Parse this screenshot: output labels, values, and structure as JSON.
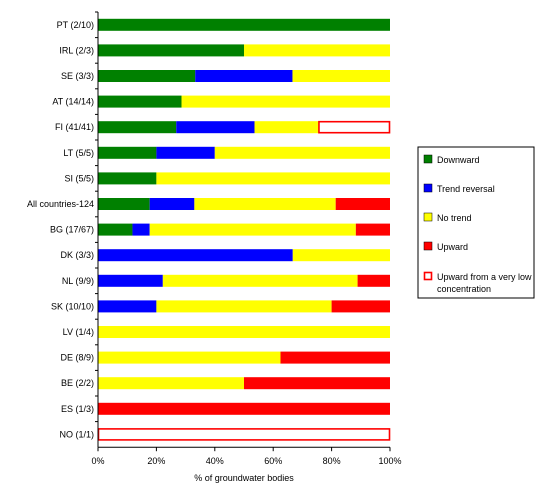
{
  "chart_data": {
    "type": "bar",
    "orientation": "horizontal",
    "stacked": true,
    "normalized": true,
    "title": "",
    "xlabel": "% of groundwater bodies",
    "ylabel": "",
    "xlim": [
      0,
      100
    ],
    "x_ticks": [
      "0%",
      "20%",
      "40%",
      "60%",
      "80%",
      "100%"
    ],
    "grid": false,
    "legend_position": "right",
    "categories": [
      "PT (2/10)",
      "IRL (2/3)",
      "SE (3/3)",
      "AT (14/14)",
      "FI (41/41)",
      "LT (5/5)",
      "SI (5/5)",
      "All countries-124",
      "BG (17/67)",
      "DK (3/3)",
      "NL (9/9)",
      "SK (10/10)",
      "LV (1/4)",
      "DE (8/9)",
      "BE (2/2)",
      "ES (1/3)",
      "NO (1/1)"
    ],
    "series": [
      {
        "name": "Downward",
        "color": "#008000",
        "style": "solid",
        "values": [
          100,
          50,
          33.3,
          28.6,
          26.8,
          20,
          20,
          17.7,
          11.8,
          0,
          0,
          0,
          0,
          0,
          0,
          0,
          0
        ]
      },
      {
        "name": "Trend reversal",
        "color": "#0000ff",
        "style": "solid",
        "values": [
          0,
          0,
          33.3,
          0,
          26.8,
          20,
          0,
          15.3,
          5.9,
          66.7,
          22.2,
          20,
          0,
          0,
          0,
          0,
          0
        ]
      },
      {
        "name": "No trend",
        "color": "#ffff00",
        "style": "solid",
        "values": [
          0,
          50,
          33.4,
          71.4,
          21.9,
          60,
          80,
          48.4,
          70.6,
          33.3,
          66.7,
          60,
          100,
          62.5,
          50,
          0,
          0
        ]
      },
      {
        "name": "Upward",
        "color": "#ff0000",
        "style": "solid",
        "values": [
          0,
          0,
          0,
          0,
          0,
          0,
          0,
          18.6,
          11.7,
          0,
          11.1,
          20,
          0,
          37.5,
          50,
          100,
          0
        ]
      },
      {
        "name": "Upward from a very low concentration",
        "color": "#ff0000",
        "style": "outline",
        "values": [
          0,
          0,
          0,
          0,
          24.5,
          0,
          0,
          0,
          0,
          0,
          0,
          0,
          0,
          0,
          0,
          0,
          100
        ]
      }
    ],
    "legend_lines": [
      [
        "Downward"
      ],
      [
        "Trend reversal"
      ],
      [
        "No trend"
      ],
      [
        "Upward"
      ],
      [
        "Upward from a very low",
        "concentration"
      ]
    ]
  }
}
